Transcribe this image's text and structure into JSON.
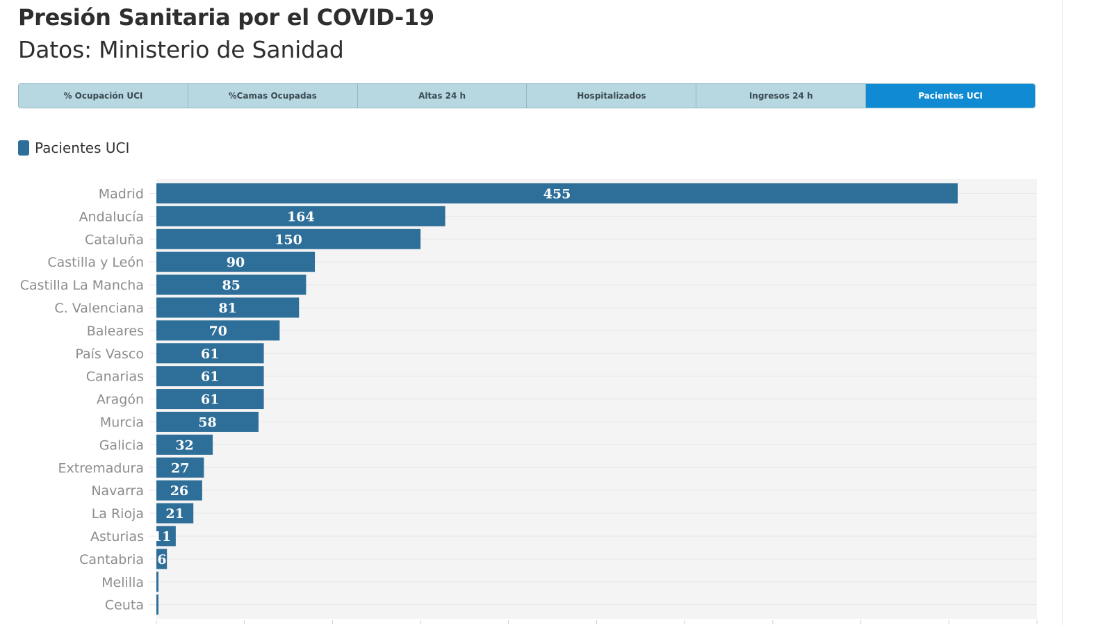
{
  "title": "Presión Sanitaria por el COVID-19",
  "subtitle": "Datos: Ministerio de Sanidad",
  "tabs": [
    {
      "label": "% Ocupación UCI",
      "active": false
    },
    {
      "label": "%Camas Ocupadas",
      "active": false
    },
    {
      "label": "Altas 24 h",
      "active": false
    },
    {
      "label": "Hospitalizados",
      "active": false
    },
    {
      "label": "Ingresos 24 h",
      "active": false
    },
    {
      "label": "Pacientes UCI",
      "active": true
    }
  ],
  "colors": {
    "bar": "#2e6f99",
    "tab_active": "#0f8ad3",
    "tab_inactive": "#b7d7e1",
    "plot_background": "#f4f4f4"
  },
  "chart_data": {
    "type": "bar",
    "orientation": "horizontal",
    "legend": {
      "entries": [
        "Pacientes UCI"
      ],
      "placement": "top-left"
    },
    "categories": [
      "Madrid",
      "Andalucía",
      "Cataluña",
      "Castilla y León",
      "Castilla La Mancha",
      "C. Valenciana",
      "Baleares",
      "País Vasco",
      "Canarias",
      "Aragón",
      "Murcia",
      "Galicia",
      "Extremadura",
      "Navarra",
      "La Rioja",
      "Asturias",
      "Cantabria",
      "Melilla",
      "Ceuta"
    ],
    "series": [
      {
        "name": "Pacientes UCI",
        "values": [
          455,
          164,
          150,
          90,
          85,
          81,
          70,
          61,
          61,
          61,
          58,
          32,
          27,
          26,
          21,
          11,
          6,
          1,
          1
        ]
      }
    ],
    "value_labels": [
      "455",
      "164",
      "150",
      "90",
      "85",
      "81",
      "70",
      "61",
      "61",
      "61",
      "58",
      "32",
      "27",
      "26",
      "21",
      "11",
      "6",
      "",
      ""
    ],
    "xlim": [
      0,
      500
    ],
    "x_grid_step": 50,
    "grid": true
  }
}
